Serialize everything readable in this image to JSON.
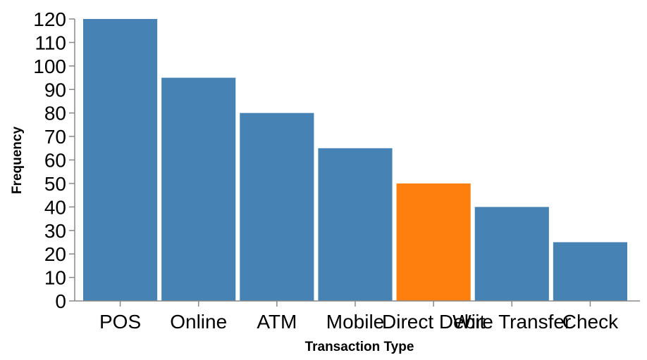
{
  "chart_data": {
    "type": "bar",
    "categories": [
      "POS",
      "Online",
      "ATM",
      "Mobile",
      "Direct Debit",
      "Wire Transfer",
      "Check"
    ],
    "values": [
      120,
      95,
      80,
      65,
      50,
      40,
      25
    ],
    "colors": [
      "#4682b4",
      "#4682b4",
      "#4682b4",
      "#4682b4",
      "#ff7f0e",
      "#4682b4",
      "#4682b4"
    ],
    "highlight_category": "Direct Debit",
    "xlabel": "Transaction Type",
    "ylabel": "Frequency",
    "ylim": [
      0,
      120
    ],
    "yticks": [
      0,
      10,
      20,
      30,
      40,
      50,
      60,
      70,
      80,
      90,
      100,
      110,
      120
    ],
    "grid": false
  }
}
